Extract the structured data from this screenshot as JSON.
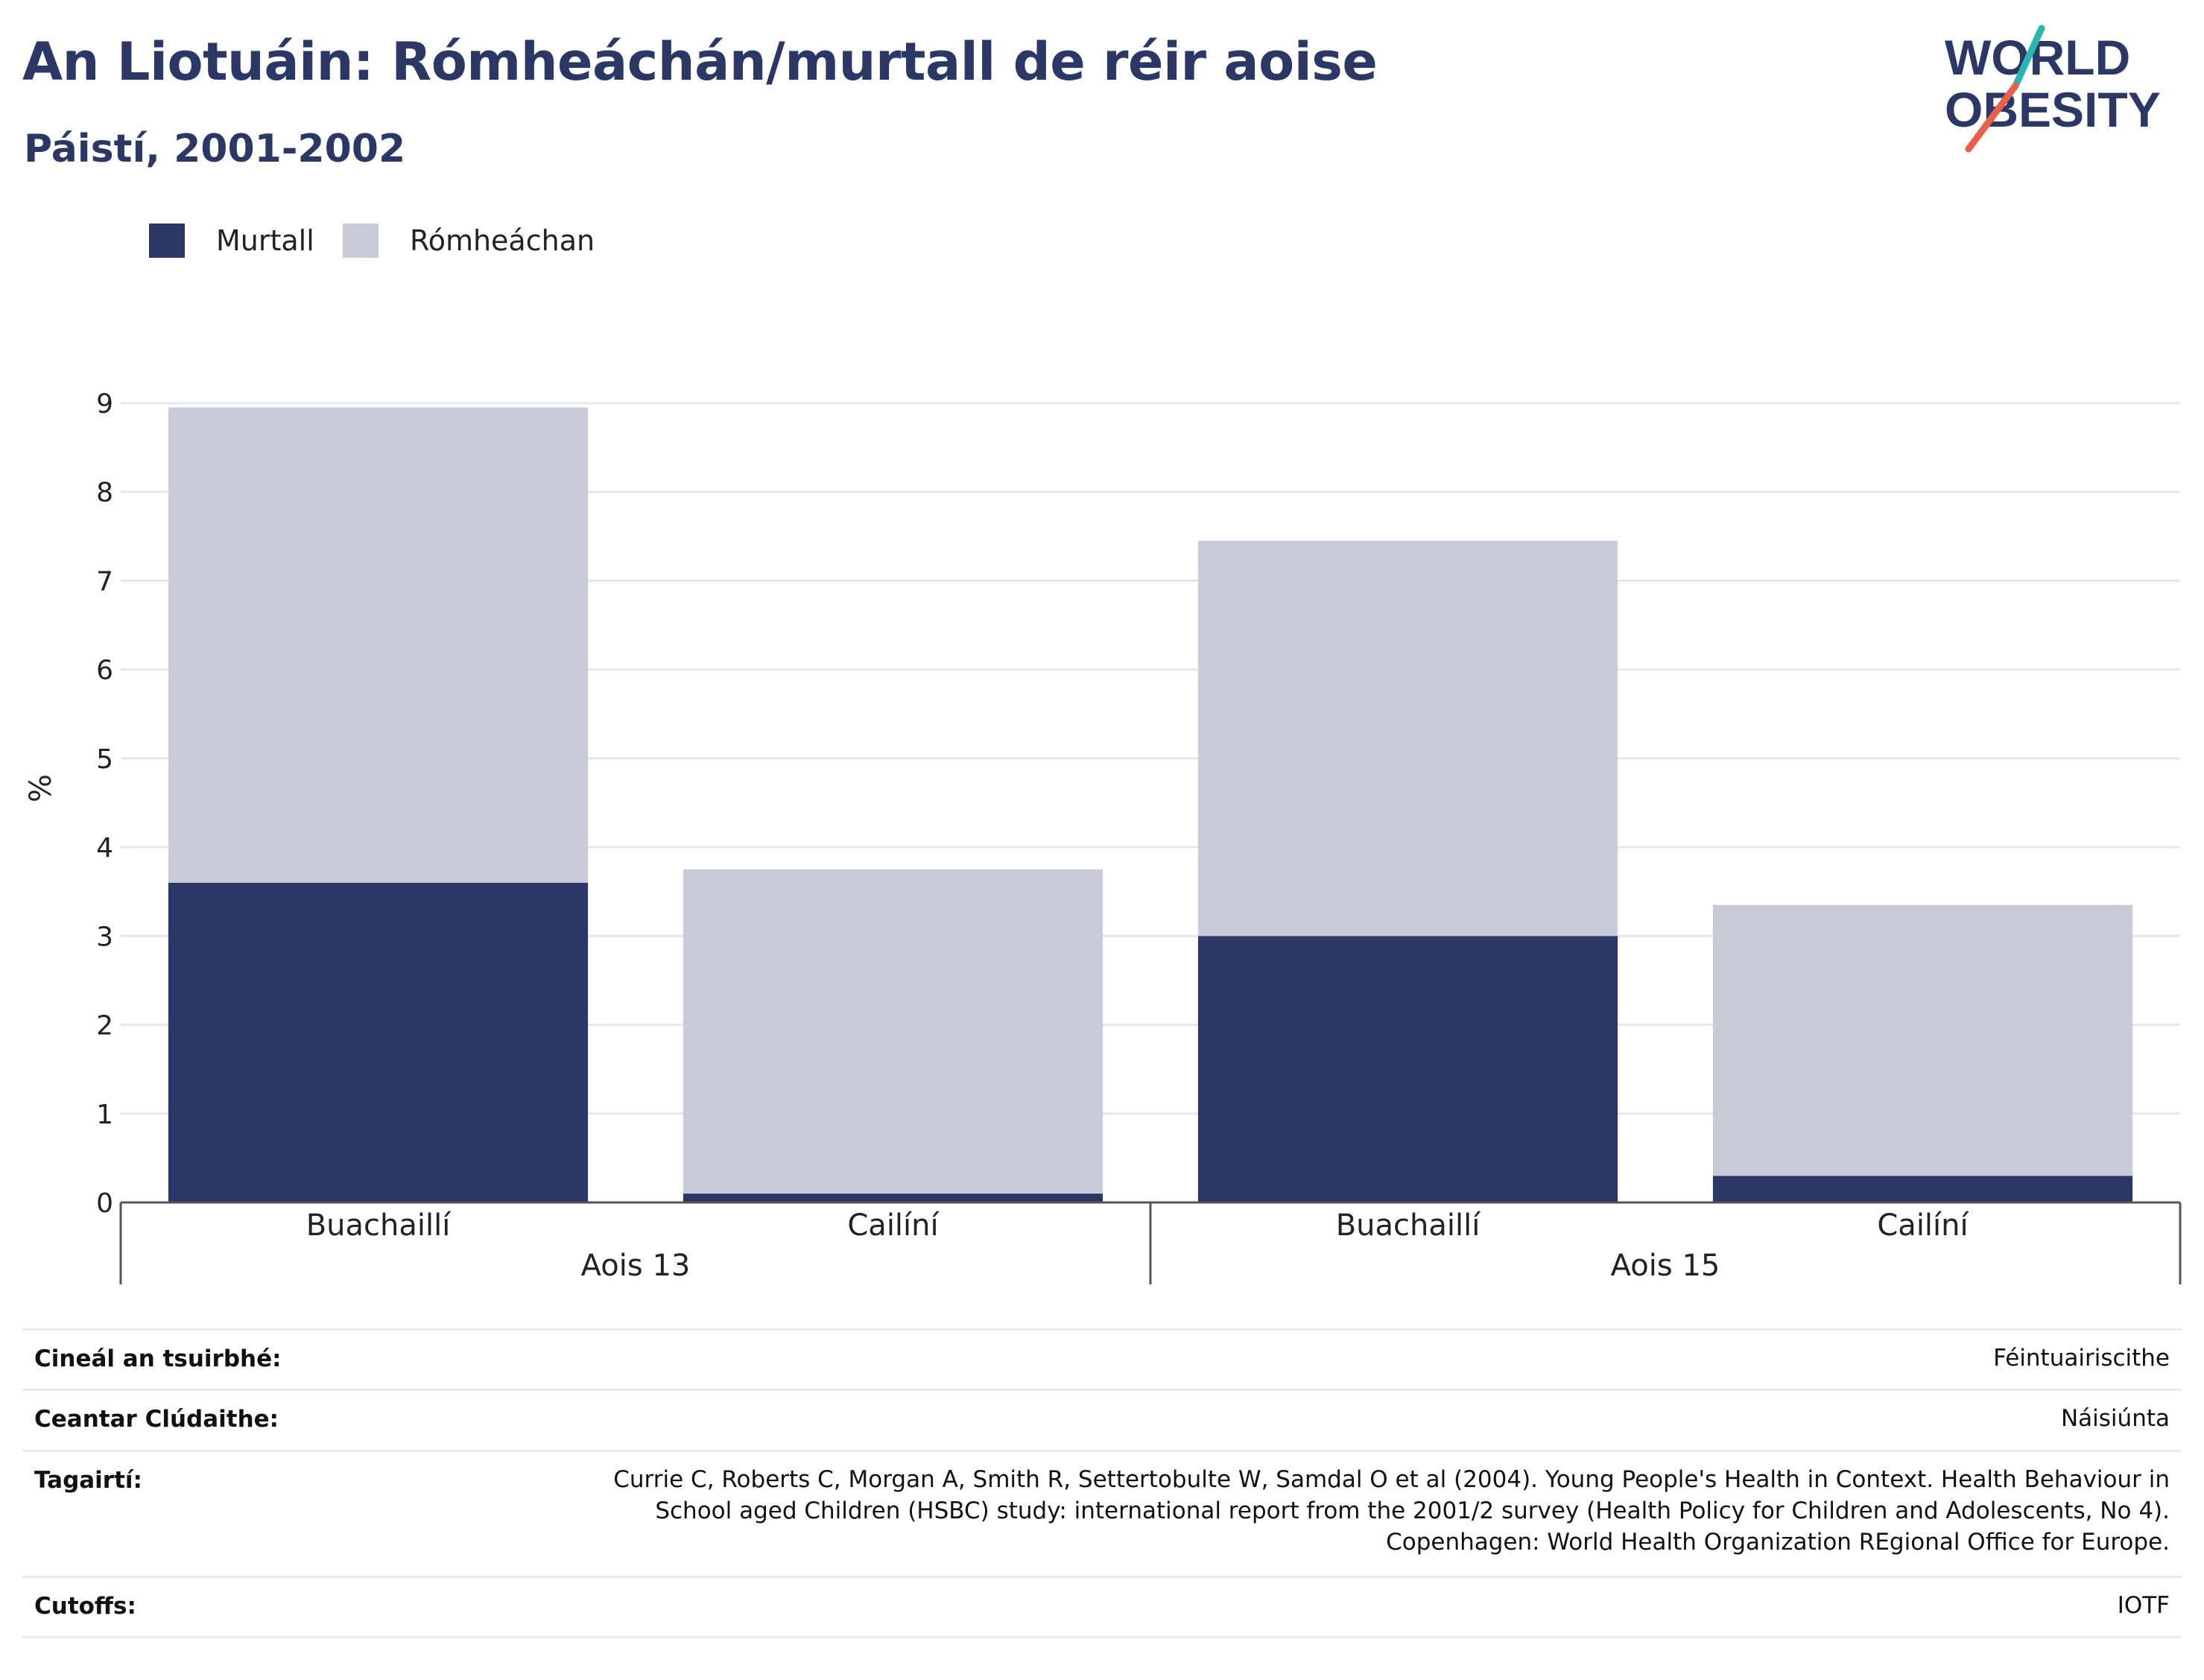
{
  "header": {
    "title": "An Liotuáin: Rómheáchán/murtall de réir aoise",
    "subtitle": "Páistí, 2001-2002"
  },
  "logo": {
    "line1": "WORLD",
    "line2": "OBESITY",
    "colors": {
      "text": "#2b3866",
      "slash_top": "#2bb5b0",
      "slash_bottom": "#e8604c"
    }
  },
  "legend": [
    {
      "name": "Murtall",
      "color": "#2b3866"
    },
    {
      "name": "Rómheáchan",
      "color": "#cacbd8"
    }
  ],
  "chart_data": {
    "type": "bar",
    "stacked": true,
    "ylabel": "%",
    "ylim": [
      0,
      9
    ],
    "yticks": [
      0,
      1,
      2,
      3,
      4,
      5,
      6,
      7,
      8,
      9
    ],
    "grid": true,
    "legend_position": "top-left",
    "groups": [
      {
        "label": "Aois 13",
        "categories": [
          "Buachaillí",
          "Cailíní"
        ]
      },
      {
        "label": "Aois 15",
        "categories": [
          "Buachaillí",
          "Cailíní"
        ]
      }
    ],
    "categories": [
      "Buachaillí",
      "Cailíní",
      "Buachaillí",
      "Cailíní"
    ],
    "series": [
      {
        "name": "Murtall",
        "color": "#2b3866",
        "values": [
          3.6,
          0.1,
          3.0,
          0.3
        ]
      },
      {
        "name": "Rómheáchan",
        "color": "#cacbd8",
        "values": [
          5.35,
          3.65,
          4.45,
          3.05
        ]
      }
    ]
  },
  "info_table": [
    {
      "label": "Cineál an tsuirbhé:",
      "value": "Féintuairiscithe"
    },
    {
      "label": "Ceantar Clúdaithe:",
      "value": "Náisiúnta"
    },
    {
      "label": "Tagairtí:",
      "value": [
        "Currie C, Roberts C, Morgan A, Smith R, Settertobulte W, Samdal O et al (2004). Young People's Health in Context. Health Behaviour in",
        "School aged Children (HSBC) study: international report from the 2001/2 survey (Health Policy for Children and Adolescents, No 4).",
        "Copenhagen: World Health Organization REgional Office for Europe."
      ]
    },
    {
      "label": "Cutoffs:",
      "value": "IOTF"
    }
  ]
}
